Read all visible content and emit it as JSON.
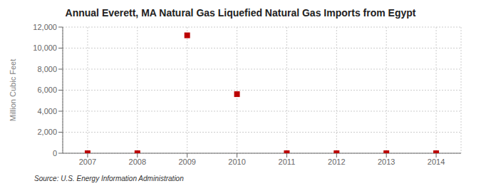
{
  "chart_data": {
    "type": "scatter",
    "title": "Annual Everett, MA Natural Gas Liquefied Natural Gas Imports from Egypt",
    "ylabel": "Million Cubic Feet",
    "annotation": "Source: U.S. Energy Information Administration",
    "x": [
      2007,
      2008,
      2009,
      2010,
      2011,
      2012,
      2013,
      2014
    ],
    "values": [
      0,
      0,
      11216,
      5621,
      0,
      0,
      0,
      0
    ],
    "color": "#bb0000",
    "marker": "square",
    "xlim": [
      2006.5,
      2014.5
    ],
    "xticks": [
      2007,
      2008,
      2009,
      2010,
      2011,
      2012,
      2013,
      2014
    ],
    "ylim": [
      0,
      12000
    ],
    "yticks": [
      0,
      {
        "value": 2000,
        "label": "2,000"
      },
      {
        "value": 4000,
        "label": "4,000"
      },
      {
        "value": 6000,
        "label": "6,000"
      },
      {
        "value": 8000,
        "label": "8,000"
      },
      {
        "value": 10000,
        "label": "10,000"
      },
      {
        "value": 12000,
        "label": "12,000"
      }
    ],
    "grid": true
  }
}
